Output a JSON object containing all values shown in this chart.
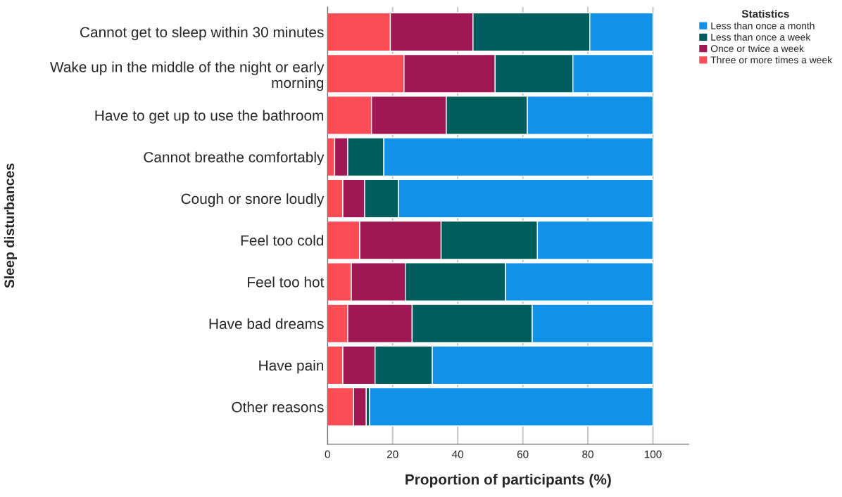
{
  "chart_data": {
    "type": "bar",
    "orientation": "horizontal",
    "stacked": true,
    "xlabel": "Proportion of participants (%)",
    "ylabel": "Sleep disturbances",
    "legend_title": "Statistics",
    "categories": [
      "Cannot get to sleep within 30 minutes",
      "Wake up in the middle of the night or early\nmorning",
      "Have to get up to use the bathroom",
      "Cannot breathe comfortably",
      "Cough or snore loudly",
      "Feel too cold",
      "Feel too hot",
      "Have bad dreams",
      "Have pain",
      "Other reasons"
    ],
    "series": [
      {
        "name": "Three or more times a week",
        "color": "#fa4d56",
        "values": [
          19.3,
          23.5,
          13.5,
          2.2,
          4.7,
          9.9,
          7.3,
          6.2,
          4.7,
          8.0
        ]
      },
      {
        "name": "Once or twice a week",
        "color": "#9f1853",
        "values": [
          25.4,
          28.0,
          23.0,
          4.0,
          6.7,
          25.0,
          16.6,
          19.8,
          9.9,
          3.9
        ]
      },
      {
        "name": "Less than once a week",
        "color": "#005d5d",
        "values": [
          35.9,
          23.9,
          24.9,
          11.1,
          10.4,
          29.6,
          30.8,
          36.9,
          17.6,
          1.0
        ]
      },
      {
        "name": "Less than once a month",
        "color": "#1192e8",
        "values": [
          19.4,
          24.6,
          38.6,
          82.7,
          78.2,
          35.5,
          45.3,
          37.1,
          67.8,
          87.1
        ]
      }
    ],
    "xlim": [
      0,
      111
    ],
    "xticks": [
      0,
      20,
      40,
      60,
      80,
      100
    ],
    "grid": "x",
    "legend": "top right"
  }
}
